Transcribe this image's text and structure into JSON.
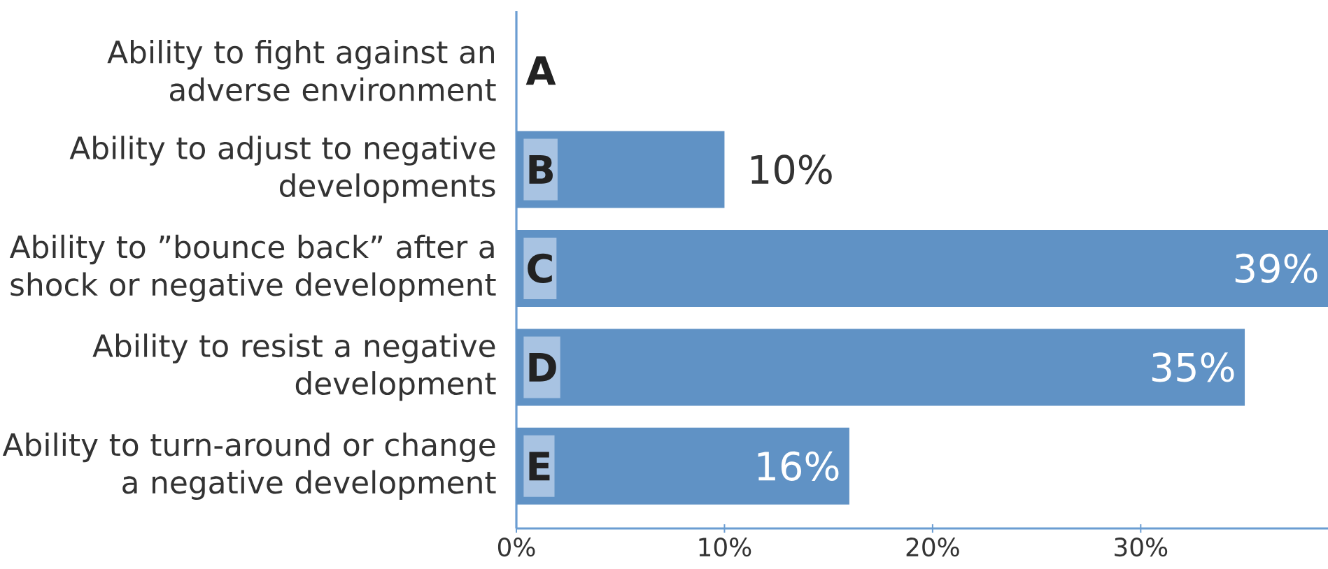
{
  "chart_data": {
    "type": "bar",
    "orientation": "horizontal",
    "categories": [
      "Ability to fight against an adverse environment",
      "Ability to adjust to negative developments",
      "Ability to ”bounce back” after a shock or negative development",
      "Ability to resist a negative development",
      "Ability to turn-around or change a negative development"
    ],
    "values": [
      null,
      10,
      39,
      35,
      16
    ],
    "value_labels": [
      null,
      "10%",
      "39%",
      "35%",
      "16%"
    ],
    "color": "#6092c5",
    "xlim": [
      0,
      39
    ],
    "xticks": [
      {
        "value": 0,
        "label": "0%"
      },
      {
        "value": 10,
        "label": "10%"
      },
      {
        "value": 20,
        "label": "20%"
      },
      {
        "value": 30,
        "label": "30%"
      }
    ],
    "annotations": [
      "A",
      "B",
      "C",
      "D",
      "E"
    ]
  }
}
